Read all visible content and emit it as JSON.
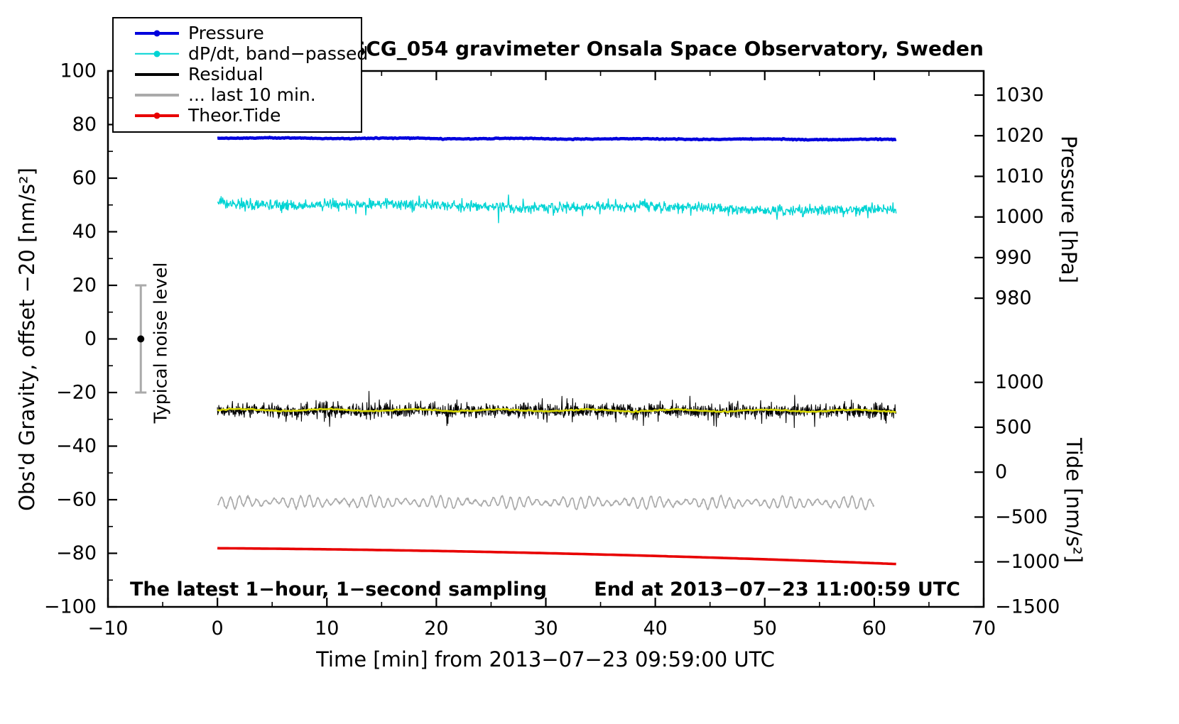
{
  "chart_data": {
    "type": "line",
    "title": "SCG_054 gravimeter Onsala Space Observatory, Sweden",
    "xlabel": "Time [min] from 2013−07−23 09:59:00 UTC",
    "ylabel_left": "Obs'd Gravity, offset −20 [nm/s²]",
    "ylabel_pressure": "Pressure [hPa]",
    "ylabel_tide": "Tide [nm/s²]",
    "xlim": [
      -10,
      70
    ],
    "ylim_left": [
      -100,
      100
    ],
    "x_ticks": [
      -10,
      0,
      10,
      20,
      30,
      40,
      50,
      60,
      70
    ],
    "y_ticks_left": [
      100,
      80,
      60,
      40,
      20,
      0,
      -20,
      -40,
      -60,
      -80,
      -100
    ],
    "grid": false,
    "legend_position": "top-left",
    "pressure_axis": {
      "ticks": [
        1030,
        1020,
        1010,
        1000,
        990,
        980
      ],
      "anchor1": {
        "value": 1030,
        "left_units": 91.0
      },
      "anchor2": {
        "value": 980,
        "left_units": 15.2
      }
    },
    "tide_axis": {
      "ticks": [
        1000,
        500,
        0,
        -500,
        -1000,
        -1500
      ],
      "anchor1": {
        "value": 1000,
        "left_units": -16.2
      },
      "anchor2": {
        "value": -1500,
        "left_units": -100
      }
    },
    "noise_marker": {
      "x": -7,
      "y": 0,
      "error": 20,
      "bar_color": "#aaaaaa",
      "dot_color": "#000000",
      "label": "Typical noise level"
    },
    "annotations": {
      "bottom_left": "The latest 1−hour, 1−second sampling",
      "bottom_right": "End at 2013−07−23 11:00:59 UTC"
    },
    "legend": {
      "items": [
        {
          "label": "Pressure",
          "color": "#0000dd",
          "lw": 4,
          "dot": true
        },
        {
          "label": "dP/dt, band−passed",
          "color": "#00d4d4",
          "lw": 2.5,
          "dot": true
        },
        {
          "label": "Residual",
          "color": "#000000",
          "lw": 4,
          "dot": false
        },
        {
          "label": "... last 10 min.",
          "color": "#aaaaaa",
          "lw": 4,
          "dot": false
        },
        {
          "label": "Theor.Tide",
          "color": "#e80000",
          "lw": 4,
          "dot": true
        }
      ]
    },
    "series": [
      {
        "name": "Pressure",
        "color": "#0000dd",
        "lw": 4.5,
        "axis": "pressure",
        "approx_value": "≈1019 hPa, nearly constant (75.0→74.4 in left-axis units)",
        "x_start": 0,
        "x_end": 62,
        "n": 600,
        "y_start": 75.0,
        "y_end": 74.4,
        "noise_sd": 0.08,
        "osc_amp": 0.12,
        "osc_period": 11,
        "seed": 11
      },
      {
        "name": "dP/dt, band−passed",
        "color": "#00d4d4",
        "lw": 1.4,
        "axis": "left",
        "approx_value": "mean ≈ +50 drifting to +48, noise ±3, spikes down to ≈43",
        "x_start": 0,
        "x_end": 62,
        "n": 1300,
        "y_start": 50.7,
        "y_end": 47.9,
        "noise_sd": 1.0,
        "osc_amp": 0.5,
        "osc_period": 23,
        "spike_prob": 0.007,
        "spike_amp": 4.2,
        "seed": 22
      },
      {
        "name": "Residual",
        "color": "#000000",
        "lw": 1.1,
        "axis": "left",
        "approx_value": "mean ≈ −26.8, 1-second noise ±3",
        "x_start": 0,
        "x_end": 62,
        "n": 1900,
        "y_start": -26.7,
        "y_end": -26.9,
        "noise_sd": 1.25,
        "heavy": true,
        "seed": 33
      },
      {
        "name": "Residual, smoothed (yellow overlay)",
        "color": "#d8d800",
        "lw": 2.6,
        "axis": "left",
        "approx_value": "mean ≈ −26.6, gentle meander",
        "x_start": 0,
        "x_end": 62,
        "n": 400,
        "y_start": -26.5,
        "y_end": -26.8,
        "noise_sd": 0.12,
        "osc_amp": 0.35,
        "osc_period": 8,
        "seed": 44
      },
      {
        "name": "... last 10 min.",
        "color": "#aaaaaa",
        "lw": 1.7,
        "axis": "left",
        "approx_value": "mean ≈ −61, quasi-periodic ±2 (≈0.8 min period)",
        "x_start": 0,
        "x_end": 60,
        "n": 1400,
        "y_start": -60.8,
        "y_end": -61.2,
        "noise_sd": 0.18,
        "osc_amp": 1.5,
        "osc_period": 0.8,
        "am_amp": 0.45,
        "am_period": 6.3,
        "osc2_amp": 0.45,
        "osc2_period": 2.9,
        "seed": 55
      },
      {
        "name": "Theor.Tide",
        "color": "#e80000",
        "lw": 3.6,
        "axis": "tide",
        "approx_value": "≈ −850 → −1020 nm/s² tide (−78.1 → −84.0 in left-axis units)",
        "x_start": 0,
        "x_end": 62,
        "n": 260,
        "y_start": -78.1,
        "y_end": -84.0,
        "bow": 1.0,
        "noise_sd": 0,
        "seed": 66
      }
    ]
  }
}
